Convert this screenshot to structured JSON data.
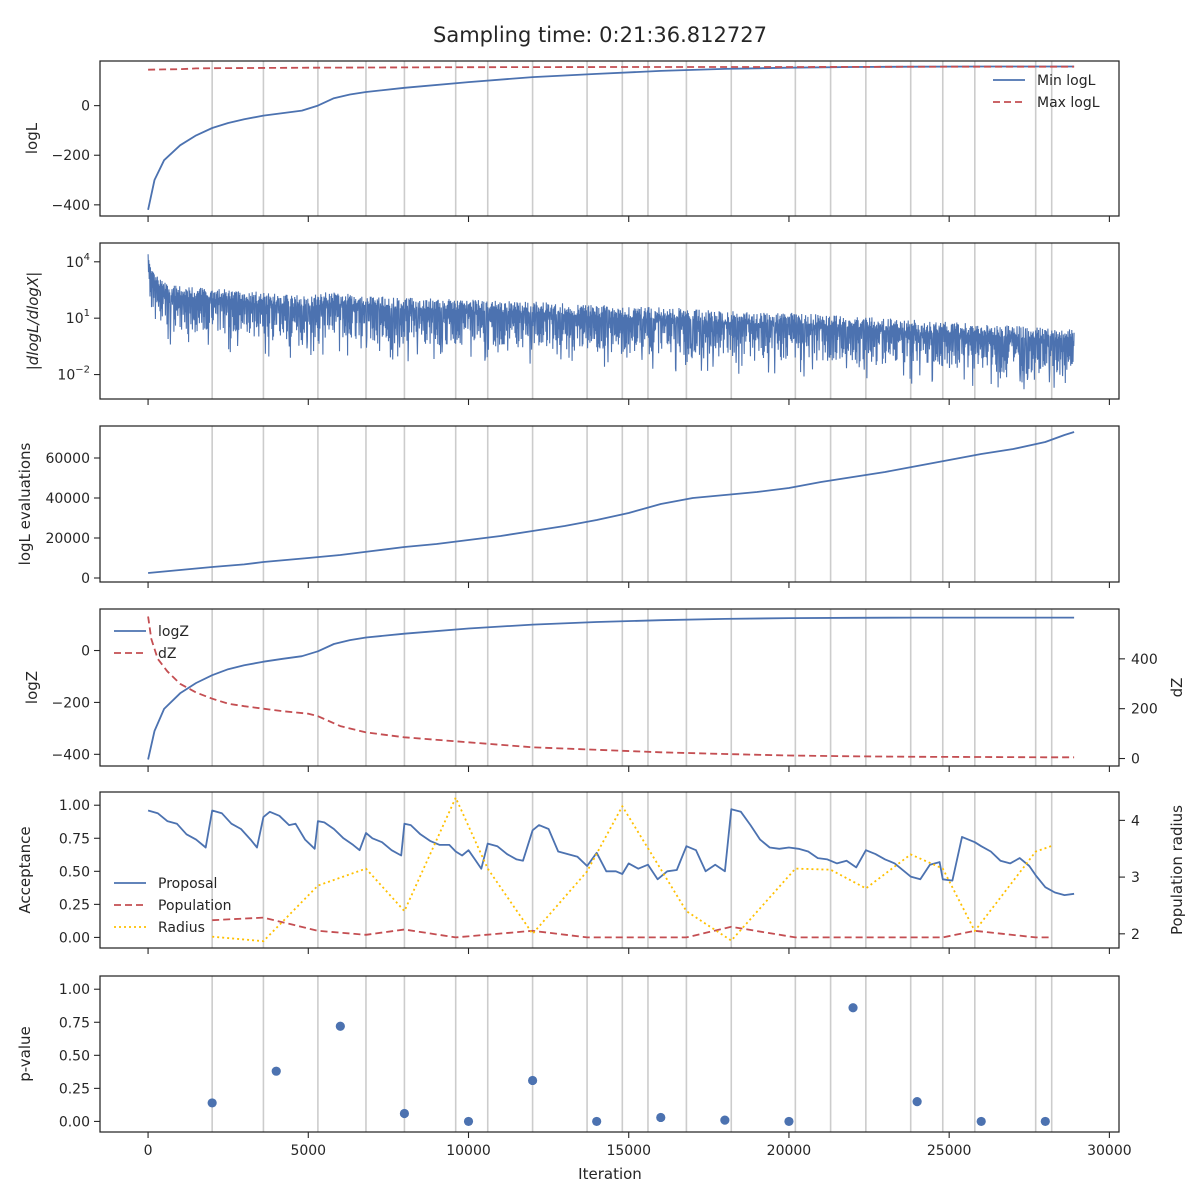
{
  "chart_data": {
    "type": "line",
    "title": "Sampling time: 0:21:36.812727",
    "xlabel": "Iteration",
    "xlim": [
      -1500,
      30300
    ],
    "x_ticks": [
      0,
      5000,
      10000,
      15000,
      20000,
      25000,
      30000
    ],
    "x_tick_labels": [
      "0",
      "5000",
      "10000",
      "15000",
      "20000",
      "25000",
      "30000"
    ],
    "insertion_iterations": [
      2000,
      3600,
      5300,
      6800,
      8000,
      9600,
      10600,
      12000,
      13700,
      14800,
      15600,
      16800,
      18200,
      20200,
      21300,
      22400,
      23800,
      24800,
      25800,
      27700,
      28200
    ],
    "panels": [
      {
        "id": "logl",
        "ylabel": "logL",
        "ylim": [
          -445,
          180
        ],
        "yticks": [
          -400,
          -200,
          0
        ],
        "ytick_labels": [
          "−400",
          "−200",
          "0"
        ],
        "legend": {
          "position": "top-right",
          "entries": [
            "Min logL",
            "Max logL"
          ]
        },
        "series": [
          {
            "name": "Min logL",
            "style": "solid",
            "color": "#4c72b0",
            "x": [
              0,
              200,
              500,
              1000,
              1500,
              2000,
              2500,
              3000,
              3600,
              4200,
              4800,
              5300,
              5800,
              6300,
              6800,
              8000,
              10000,
              12000,
              14000,
              16000,
              18000,
              20000,
              22000,
              24000,
              26000,
              28000,
              28900
            ],
            "y": [
              -420,
              -300,
              -220,
              -160,
              -120,
              -90,
              -70,
              -55,
              -40,
              -30,
              -20,
              0,
              30,
              45,
              55,
              72,
              95,
              115,
              128,
              140,
              148,
              153,
              156,
              157,
              158,
              158,
              158
            ]
          },
          {
            "name": "Max logL",
            "style": "dashed",
            "color": "#c44e52",
            "x": [
              0,
              500,
              1000,
              1500,
              2000,
              5000,
              10000,
              15000,
              20000,
              25000,
              28900
            ],
            "y": [
              145,
              146,
              147,
              150,
              151,
              153,
              155,
              156,
              156,
              157,
              157
            ]
          }
        ]
      },
      {
        "id": "gradient",
        "ylabel": "|dlogL/dlogX|",
        "yscale": "log",
        "ylim_log10": [
          -3.3,
          5.0
        ],
        "ytick_exponents": [
          -2,
          1,
          4
        ],
        "series": [
          {
            "name": "|dlogL/dlogX|",
            "style": "solid",
            "color": "#4c72b0",
            "x_range": [
              0,
              28900
            ],
            "envelope_x": [
              0,
              100,
              500,
              1000,
              2000,
              3000,
              4000,
              5000,
              5500,
              6000,
              7000,
              8000,
              10000,
              12000,
              14000,
              16000,
              18000,
              20000,
              22000,
              24000,
              26000,
              28000,
              28900
            ],
            "envelope_upper_log10": [
              4.4,
              3.6,
              2.9,
              2.7,
              2.6,
              2.5,
              2.3,
              2.2,
              2.4,
              2.4,
              2.2,
              2.1,
              2.0,
              1.9,
              1.7,
              1.6,
              1.4,
              1.3,
              1.1,
              0.9,
              0.7,
              0.5,
              0.4
            ],
            "envelope_lower_log10": [
              2.5,
              1.0,
              0.5,
              0.3,
              0.2,
              0.0,
              -0.2,
              -0.3,
              -0.1,
              -0.1,
              -0.2,
              -0.4,
              -0.5,
              -0.6,
              -0.8,
              -0.9,
              -1.1,
              -1.2,
              -1.4,
              -1.6,
              -1.8,
              -2.0,
              -2.1
            ],
            "min_spikes_log10": [
              -2.0,
              -2.8
            ]
          }
        ]
      },
      {
        "id": "evaluations",
        "ylabel": "logL evaluations",
        "ylim": [
          -2000,
          76000
        ],
        "yticks": [
          0,
          20000,
          40000,
          60000
        ],
        "ytick_labels": [
          "0",
          "20000",
          "40000",
          "60000"
        ],
        "series": [
          {
            "name": "logL evaluations",
            "style": "solid",
            "color": "#4c72b0",
            "x": [
              0,
              1000,
              2000,
              3000,
              3600,
              5000,
              6000,
              7000,
              8000,
              9000,
              10000,
              11000,
              12000,
              13000,
              14000,
              15000,
              16000,
              17000,
              18000,
              19000,
              20000,
              21000,
              22000,
              23000,
              24000,
              25000,
              26000,
              27000,
              28000,
              28600,
              28900
            ],
            "y": [
              2500,
              4000,
              5500,
              6800,
              8000,
              10000,
              11500,
              13500,
              15500,
              17000,
              19000,
              21000,
              23500,
              26000,
              29000,
              32500,
              37000,
              40000,
              41500,
              43000,
              45000,
              48000,
              50500,
              53000,
              56000,
              59000,
              62000,
              64500,
              68000,
              71500,
              73000
            ]
          }
        ]
      },
      {
        "id": "evidence",
        "ylabel": "logZ",
        "ylabel_right": "dZ",
        "ylim": [
          -445,
          160
        ],
        "yticks": [
          -400,
          -200,
          0
        ],
        "ytick_labels": [
          "−400",
          "−200",
          "0"
        ],
        "ylim_right": [
          -30,
          600
        ],
        "yticks_right": [
          0,
          200,
          400
        ],
        "ytick_labels_right": [
          "0",
          "200",
          "400"
        ],
        "legend": {
          "position": "top-left",
          "entries": [
            "logZ",
            "dZ"
          ]
        },
        "series": [
          {
            "name": "logZ",
            "style": "solid",
            "color": "#4c72b0",
            "axis": "left",
            "x": [
              0,
              200,
              500,
              1000,
              1500,
              2000,
              2500,
              3000,
              3600,
              4200,
              4800,
              5300,
              5800,
              6300,
              6800,
              8000,
              10000,
              12000,
              14000,
              16000,
              18000,
              20000,
              22000,
              24000,
              26000,
              28000,
              28900
            ],
            "y": [
              -420,
              -310,
              -225,
              -165,
              -125,
              -95,
              -72,
              -57,
              -43,
              -32,
              -22,
              -3,
              25,
              40,
              50,
              65,
              85,
              100,
              110,
              117,
              122,
              125,
              126,
              127,
              127,
              127,
              127
            ]
          },
          {
            "name": "dZ",
            "style": "dashed",
            "color": "#c44e52",
            "axis": "right",
            "x": [
              0,
              100,
              300,
              600,
              1000,
              1500,
              2000,
              2500,
              3000,
              3600,
              4200,
              5000,
              5300,
              6000,
              6800,
              8000,
              10000,
              12000,
              14000,
              16000,
              18000,
              20000,
              22000,
              24000,
              26000,
              28000,
              28900
            ],
            "y": [
              570,
              480,
              400,
              350,
              300,
              265,
              240,
              220,
              210,
              200,
              190,
              180,
              170,
              130,
              105,
              85,
              65,
              45,
              35,
              25,
              18,
              12,
              9,
              7,
              6,
              5,
              5
            ]
          }
        ]
      },
      {
        "id": "acceptance",
        "ylabel": "Acceptance",
        "ylabel_right": "Population radius",
        "ylim": [
          -0.08,
          1.1
        ],
        "yticks": [
          0.0,
          0.25,
          0.5,
          0.75,
          1.0
        ],
        "ytick_labels": [
          "0.00",
          "0.25",
          "0.50",
          "0.75",
          "1.00"
        ],
        "ylim_right": [
          1.75,
          4.5
        ],
        "yticks_right": [
          2,
          3,
          4
        ],
        "ytick_labels_right": [
          "2",
          "3",
          "4"
        ],
        "legend": {
          "position": "lower-left",
          "entries": [
            "Proposal",
            "Population",
            "Radius"
          ]
        },
        "series": [
          {
            "name": "Proposal",
            "style": "solid",
            "color": "#4c72b0",
            "axis": "left",
            "x": [
              0,
              300,
              600,
              900,
              1200,
              1500,
              1800,
              2000,
              2300,
              2600,
              2900,
              3200,
              3400,
              3600,
              3800,
              4100,
              4400,
              4600,
              4900,
              5200,
              5300,
              5500,
              5800,
              6100,
              6400,
              6600,
              6800,
              7000,
              7300,
              7600,
              7900,
              8000,
              8200,
              8500,
              8800,
              9100,
              9400,
              9600,
              9800,
              10000,
              10200,
              10400,
              10600,
              10900,
              11200,
              11500,
              11700,
              12000,
              12200,
              12500,
              12800,
              13100,
              13400,
              13700,
              14000,
              14300,
              14600,
              14800,
              15000,
              15300,
              15600,
              15900,
              16200,
              16500,
              16800,
              17100,
              17400,
              17700,
              18000,
              18200,
              18500,
              18800,
              19100,
              19400,
              19700,
              20000,
              20300,
              20600,
              20900,
              21200,
              21500,
              21800,
              22100,
              22400,
              22700,
              23000,
              23300,
              23600,
              23800,
              24100,
              24400,
              24700,
              24800,
              25100,
              25400,
              25800,
              26000,
              26300,
              26600,
              26900,
              27200,
              27500,
              27700,
              28000,
              28300,
              28600,
              28900
            ],
            "y": [
              0.96,
              0.94,
              0.88,
              0.86,
              0.78,
              0.74,
              0.68,
              0.96,
              0.94,
              0.86,
              0.82,
              0.74,
              0.68,
              0.91,
              0.95,
              0.92,
              0.85,
              0.86,
              0.74,
              0.67,
              0.88,
              0.87,
              0.82,
              0.75,
              0.7,
              0.66,
              0.79,
              0.75,
              0.72,
              0.66,
              0.62,
              0.86,
              0.85,
              0.78,
              0.73,
              0.7,
              0.7,
              0.65,
              0.62,
              0.66,
              0.59,
              0.52,
              0.71,
              0.69,
              0.63,
              0.59,
              0.58,
              0.81,
              0.85,
              0.82,
              0.65,
              0.63,
              0.61,
              0.54,
              0.64,
              0.5,
              0.5,
              0.48,
              0.56,
              0.52,
              0.55,
              0.44,
              0.5,
              0.51,
              0.69,
              0.66,
              0.5,
              0.55,
              0.5,
              0.97,
              0.95,
              0.85,
              0.74,
              0.68,
              0.67,
              0.68,
              0.67,
              0.65,
              0.6,
              0.59,
              0.56,
              0.58,
              0.53,
              0.66,
              0.63,
              0.59,
              0.56,
              0.5,
              0.46,
              0.44,
              0.55,
              0.57,
              0.44,
              0.43,
              0.76,
              0.72,
              0.69,
              0.65,
              0.58,
              0.56,
              0.6,
              0.54,
              0.47,
              0.38,
              0.34,
              0.32,
              0.33
            ]
          },
          {
            "name": "Population",
            "style": "dashed",
            "color": "#c44e52",
            "axis": "left",
            "x": [
              2000,
              3600,
              5300,
              6800,
              8000,
              9600,
              12000,
              13700,
              16800,
              18200,
              20200,
              22400,
              24800,
              25800,
              27700,
              28200
            ],
            "y": [
              0.13,
              0.15,
              0.05,
              0.02,
              0.06,
              0.0,
              0.05,
              0.0,
              0.0,
              0.08,
              0.0,
              0.0,
              0.0,
              0.05,
              0.0,
              0.0
            ]
          },
          {
            "name": "Radius",
            "style": "dotted",
            "color": "#ffc000",
            "axis": "right",
            "x": [
              2000,
              3600,
              5300,
              6800,
              8000,
              9600,
              10600,
              12000,
              13700,
              14800,
              16800,
              18200,
              20200,
              21300,
              22400,
              23800,
              24800,
              25800,
              27700,
              28200
            ],
            "y": [
              1.95,
              1.87,
              2.85,
              3.15,
              2.4,
              4.4,
              3.15,
              2.0,
              3.1,
              4.25,
              2.4,
              1.88,
              3.15,
              3.13,
              2.8,
              3.4,
              3.15,
              2.05,
              3.45,
              3.55
            ]
          }
        ]
      },
      {
        "id": "pvalue",
        "type": "scatter",
        "ylabel": "p-value",
        "ylim": [
          -0.08,
          1.1
        ],
        "yticks": [
          0.0,
          0.25,
          0.5,
          0.75,
          1.0
        ],
        "ytick_labels": [
          "0.00",
          "0.25",
          "0.50",
          "0.75",
          "1.00"
        ],
        "series": [
          {
            "name": "p-value",
            "style": "marker",
            "color": "#4c72b0",
            "x": [
              2000,
              4000,
              6000,
              8000,
              10000,
              12000,
              14000,
              16000,
              18000,
              20000,
              22000,
              24000,
              26000,
              28000
            ],
            "y": [
              0.14,
              0.38,
              0.72,
              0.06,
              0.0,
              0.31,
              0.0,
              0.03,
              0.01,
              0.0,
              0.86,
              0.15,
              0.0,
              0.0
            ]
          }
        ]
      }
    ]
  },
  "colors": {
    "blue": "#4c72b0",
    "red": "#c44e52",
    "gold": "#ffc000",
    "grid": "#cccccc",
    "axis": "#262626"
  }
}
